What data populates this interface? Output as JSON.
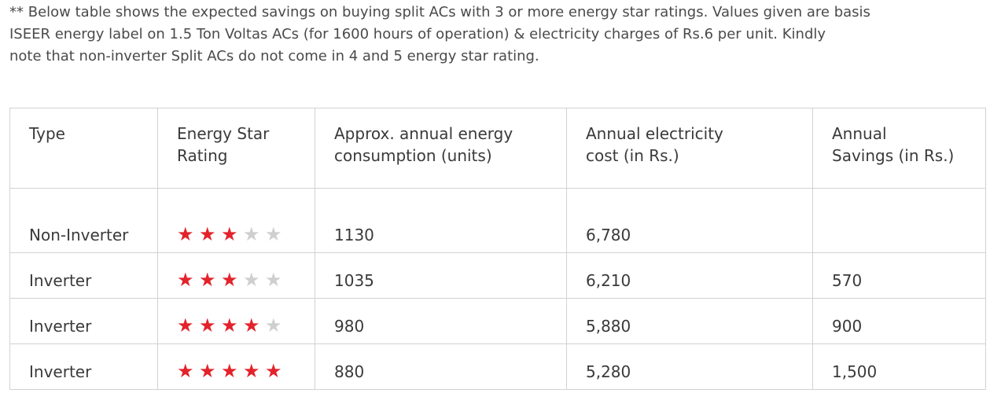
{
  "note": {
    "line1": "** Below table shows the expected savings on buying split ACs with 3 or more energy star ratings. Values given are basis",
    "line2": "ISEER energy label on 1.5 Ton Voltas ACs (for 1600 hours of operation) & electricity charges of Rs.6 per unit. Kindly",
    "line3": "note that non-inverter Split ACs do not come in 4 and 5 energy star rating."
  },
  "table": {
    "headers": {
      "type": "Type",
      "rating_1": "Energy Star",
      "rating_2": "Rating",
      "consumption_1": "Approx. annual energy",
      "consumption_2": "consumption (units)",
      "cost_1": "Annual electricity",
      "cost_2": "cost  (in Rs.)",
      "savings_1": "Annual",
      "savings_2": "Savings (in Rs.)"
    },
    "rows": [
      {
        "type": "Non-Inverter",
        "stars": 3,
        "consumption": "1130",
        "cost": "6,780",
        "savings": ""
      },
      {
        "type": "Inverter",
        "stars": 3,
        "consumption": "1035",
        "cost": "6,210",
        "savings": "570"
      },
      {
        "type": "Inverter",
        "stars": 4,
        "consumption": "980",
        "cost": "5,880",
        "savings": "900"
      },
      {
        "type": "Inverter",
        "stars": 5,
        "consumption": "880",
        "cost": "5,280",
        "savings": "1,500"
      }
    ],
    "max_stars": 5,
    "colors": {
      "star_on": "#e3232b",
      "star_off": "#cfcfcf",
      "border": "#d2d2d2"
    }
  }
}
